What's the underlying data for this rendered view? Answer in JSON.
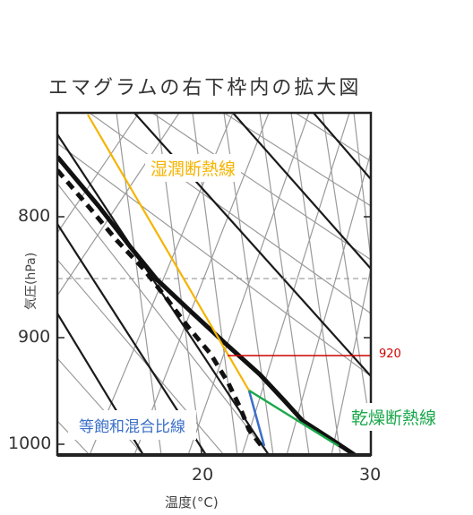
{
  "title": "エマグラムの右下枠内の拡大図",
  "y_axis": {
    "label": "気圧(hPa)",
    "ticks": [
      "800",
      "900",
      "1000"
    ]
  },
  "x_axis": {
    "label": "温度(°C)",
    "ticks": [
      "20",
      "30"
    ]
  },
  "annotations": {
    "moist_adiabat": "湿潤断熱線",
    "dry_adiabat": "乾燥断熱線",
    "mixing_ratio": "等飽和混合比線",
    "level": "920"
  },
  "colors": {
    "moist_adiabat": "#f5b400",
    "dry_adiabat": "#1aa84a",
    "mixing_ratio": "#3a6fc8",
    "level_line": "#d00000",
    "grid": "#999999",
    "profile": "#111111"
  },
  "chart_data": {
    "type": "diagram",
    "y_axis_scale": "log",
    "ylim": [
      1010,
      740
    ],
    "xlim": [
      12,
      30
    ],
    "marked_level": 920,
    "curves": {
      "environment_temperature": "solid black",
      "dew_point": "dashed black",
      "moist_adiabat": "yellow",
      "dry_adiabat": "green",
      "mixing_ratio": "blue"
    }
  }
}
